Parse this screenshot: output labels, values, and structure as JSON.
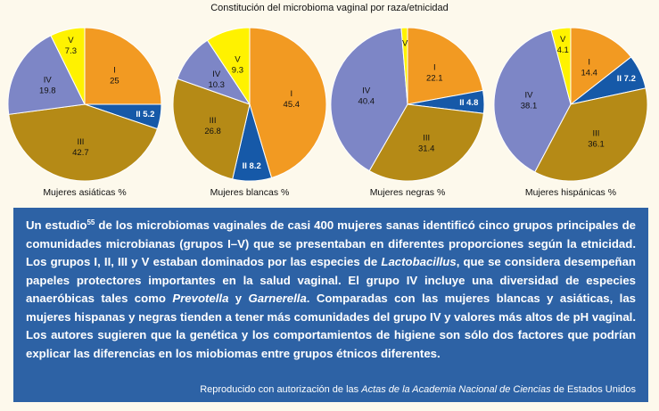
{
  "chart_data": {
    "type": "pie",
    "title": "Constitución del microbioma vaginal por raza/etnicidad",
    "categories": [
      "I",
      "II",
      "III",
      "IV",
      "V"
    ],
    "colors": {
      "I": "#f29a22",
      "II": "#1659a8",
      "III": "#b58a16",
      "IV": "#7d86c6",
      "V": "#fff200"
    },
    "charts": [
      {
        "name": "Mujeres asiáticas %",
        "values": [
          25,
          5.2,
          42.7,
          19.8,
          7.3
        ],
        "labels": [
          "25",
          "5.2",
          "42.7",
          "19.8",
          "7.3"
        ]
      },
      {
        "name": "Mujeres blancas %",
        "values": [
          45.4,
          8.2,
          26.8,
          10.3,
          9.3
        ],
        "labels": [
          "45.4",
          "8.2",
          "26.8",
          "10.3",
          "9.3"
        ]
      },
      {
        "name": "Mujeres negras %",
        "values": [
          22.1,
          4.8,
          31.4,
          40.4,
          1.3
        ],
        "labels": [
          "22.1",
          "4.8",
          "31.4",
          "40.4",
          ""
        ]
      },
      {
        "name": "Mujeres hispánicas %",
        "values": [
          14.4,
          7.2,
          36.1,
          38.1,
          4.1
        ],
        "labels": [
          "14.4",
          "7.2",
          "36.1",
          "38.1",
          "4.1"
        ]
      }
    ]
  },
  "text": {
    "sentence1_a": "Un estudio",
    "ref": "55",
    "sentence1_b": " de los microbiomas vaginales de casi 400 mujeres sanas identificó cinco grupos principales de comunidades microbianas (grupos I–V) que se presentaban en diferentes proporciones según la etnicidad. Los grupos I, II, III y V estaban dominados por las especies de ",
    "genus1": "Lactobacillus",
    "sentence2": ", que se considera desempeñan papeles protectores importantes en la salud vaginal. El grupo IV incluye una diversidad de especies anaeróbicas tales como ",
    "genus2": "Prevotella",
    "and": " y ",
    "genus3": "Garnerella",
    "sentence3": ". Comparadas con las mujeres blancas y asiáticas, las mujeres hispanas y negras tienden a tener más comunidades del grupo IV y valores más altos de pH vaginal. Los autores sugieren que la genética y los comportamientos de higiene son sólo dos factores que podrían explicar las diferencias en los miobiomas entre grupos étnicos diferentes.",
    "credit_a": "Reproducido con autorización de las ",
    "credit_journal": "Actas de la Academia Nacional de Ciencias",
    "credit_b": " de Estados Unidos"
  }
}
